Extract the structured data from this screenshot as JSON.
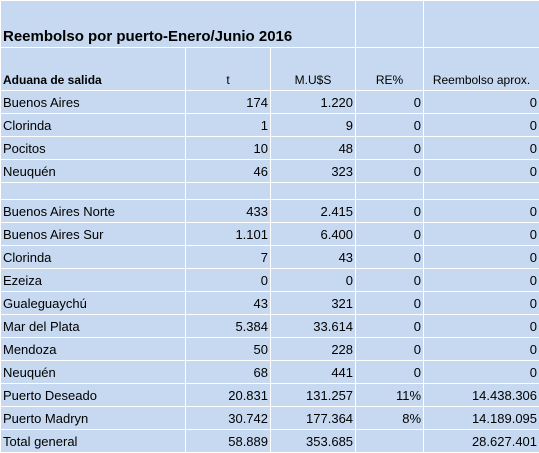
{
  "table": {
    "title": "Reembolso por puerto-Enero/Junio 2016",
    "header": [
      "Aduana de salida",
      "t",
      "M.U$S",
      "RE%",
      "Reembolso aprox."
    ],
    "sections": [
      [
        [
          "Buenos Aires",
          "174",
          "1.220",
          "0",
          "0"
        ],
        [
          "Clorinda",
          "1",
          "9",
          "0",
          "0"
        ],
        [
          "Pocitos",
          "10",
          "48",
          "0",
          "0"
        ],
        [
          "Neuquén",
          "46",
          "323",
          "0",
          "0"
        ]
      ],
      [
        [
          "Buenos Aires Norte",
          "433",
          "2.415",
          "0",
          "0"
        ],
        [
          "Buenos Aires Sur",
          "1.101",
          "6.400",
          "0",
          "0"
        ],
        [
          "Clorinda",
          "7",
          "43",
          "0",
          "0"
        ],
        [
          "Ezeiza",
          "0",
          "0",
          "0",
          "0"
        ],
        [
          "Gualeguaychú",
          "43",
          "321",
          "0",
          "0"
        ],
        [
          "Mar del Plata",
          "5.384",
          "33.614",
          "0",
          "0"
        ],
        [
          "Mendoza",
          "50",
          "228",
          "0",
          "0"
        ],
        [
          "Neuquén",
          "68",
          "441",
          "0",
          "0"
        ],
        [
          "Puerto Deseado",
          "20.831",
          "131.257",
          "11%",
          "14.438.306"
        ],
        [
          "Puerto Madryn",
          "30.742",
          "177.364",
          "8%",
          "14.189.095"
        ],
        [
          "Total general",
          "58.889",
          "353.685",
          "",
          "28.627.401"
        ]
      ]
    ]
  }
}
